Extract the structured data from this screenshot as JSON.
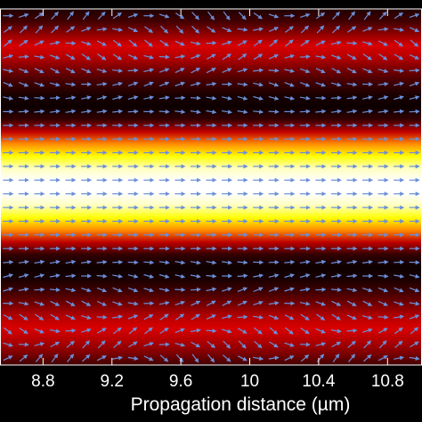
{
  "chart_data": {
    "type": "heatmap",
    "title": "",
    "xlabel": "Propagation distance (µm)",
    "ylabel": "",
    "x_ticks": [
      8.8,
      9.2,
      9.6,
      10,
      10.4,
      10.8
    ],
    "x_tick_labels": [
      "8.8",
      "9.2",
      "9.6",
      "10",
      "10.4",
      "10.8"
    ],
    "xlim": [
      8.55,
      11.0
    ],
    "grid": false,
    "legend": "none",
    "colormap": "hot",
    "intensity_profile": {
      "description_units": "normalized intensity vs. transverse row index (top to bottom)",
      "values": [
        0.05,
        0.1,
        0.22,
        0.34,
        0.28,
        0.18,
        0.1,
        0.04,
        0.02,
        0.08,
        0.3,
        0.62,
        0.8,
        0.95,
        1.0,
        1.0,
        0.95,
        0.8,
        0.62,
        0.3,
        0.08,
        0.02,
        0.04,
        0.1,
        0.18,
        0.28,
        0.34,
        0.28,
        0.2,
        0.1
      ]
    },
    "vector_field": {
      "color": "#6a8fd8",
      "grid_columns": 27,
      "grid_rows": 26,
      "dominant_direction": "rightward"
    }
  }
}
